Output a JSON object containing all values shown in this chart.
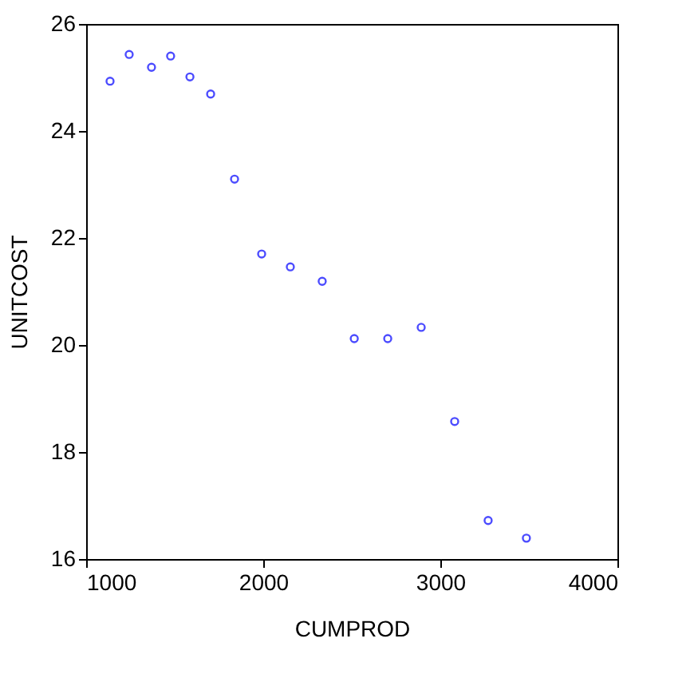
{
  "chart_data": {
    "type": "scatter",
    "xlabel": "CUMPROD",
    "ylabel": "UNITCOST",
    "x": [
      1135,
      1243,
      1369,
      1477,
      1586,
      1703,
      1838,
      1991,
      2153,
      2333,
      2514,
      2703,
      2892,
      3081,
      3270,
      3486
    ],
    "series": [
      {
        "color": "#0000ff",
        "values": [
          24.93,
          25.43,
          25.19,
          25.4,
          25.01,
          24.69,
          23.1,
          21.7,
          21.46,
          21.19,
          20.12,
          20.12,
          20.33,
          18.57,
          16.72,
          16.39
        ]
      }
    ],
    "xlim": [
      1000,
      4000
    ],
    "xticks": [
      1000,
      2000,
      3000,
      4000
    ],
    "ylim": [
      16,
      26
    ],
    "yticks": [
      16,
      18,
      20,
      22,
      24,
      26
    ],
    "grid": false,
    "marker": "circle"
  }
}
